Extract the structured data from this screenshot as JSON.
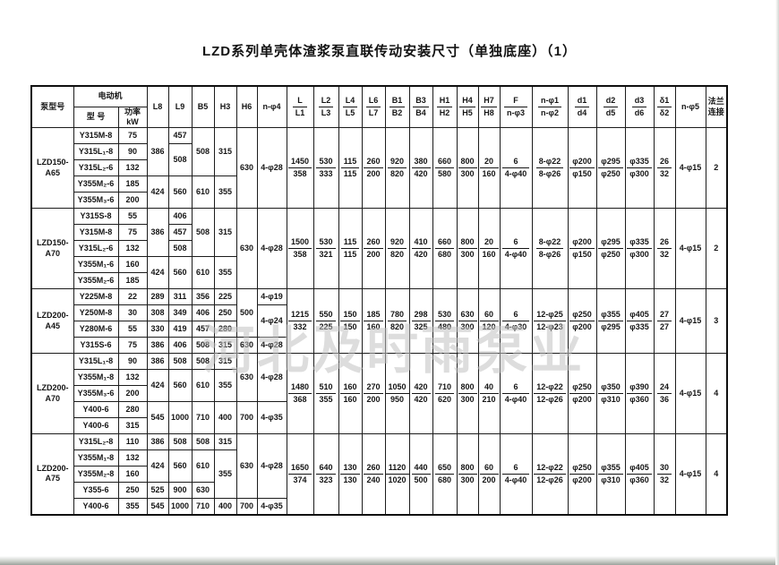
{
  "title": "LZD系列单壳体渣浆泵直联传动安装尺寸（单独底座）（1）",
  "watermark": "河北及时雨泵业",
  "header": {
    "pump_model": "泵型号",
    "motor": "电动机",
    "motor_model": "型 号",
    "motor_power": "功率kW",
    "simple_cols": [
      "L8",
      "L9",
      "B5",
      "H3",
      "H6",
      "n-φ4"
    ],
    "frac_cols": [
      [
        "L",
        "L1"
      ],
      [
        "L2",
        "L3"
      ],
      [
        "L4",
        "L5"
      ],
      [
        "L6",
        "L7"
      ],
      [
        "B1",
        "B2"
      ],
      [
        "B3",
        "B4"
      ],
      [
        "H1",
        "H2"
      ],
      [
        "H4",
        "H5"
      ],
      [
        "H7",
        "H8"
      ],
      [
        "F",
        "n-φ3"
      ],
      [
        "n-φ1",
        "n-φ2"
      ],
      [
        "d1",
        "d4"
      ],
      [
        "d2",
        "d5"
      ],
      [
        "d3",
        "d6"
      ],
      [
        "δ1",
        "δ2"
      ]
    ],
    "n_phi5": "n-φ5",
    "flange_lines": [
      "法兰",
      "连接"
    ]
  },
  "groups": [
    {
      "model": "LZD150-A65",
      "rows": [
        [
          {
            "t": "Y315M-8"
          },
          {
            "t": "75"
          },
          {
            "t": "386",
            "rs": 3
          },
          {
            "t": "457"
          },
          {
            "t": "508",
            "rs": 3
          },
          {
            "t": "315",
            "rs": 3
          },
          {
            "t": "630",
            "rs": 5
          },
          {
            "t": "4-φ28",
            "rs": 5
          }
        ],
        [
          {
            "t": "Y315L₁-8"
          },
          {
            "t": "90"
          },
          {
            "t": "508",
            "rs": 2
          }
        ],
        [
          {
            "t": "Y315L₂-6"
          },
          {
            "t": "132"
          }
        ],
        [
          {
            "t": "Y355M₂-6"
          },
          {
            "t": "185"
          },
          {
            "t": "424",
            "rs": 2
          },
          {
            "t": "560",
            "rs": 2
          },
          {
            "t": "610",
            "rs": 2
          },
          {
            "t": "355",
            "rs": 2
          }
        ],
        [
          {
            "t": "Y355M₃-6"
          },
          {
            "t": "200"
          }
        ]
      ],
      "merged": [
        {
          "f": [
            "1450",
            "358"
          ]
        },
        {
          "f": [
            "530",
            "333"
          ]
        },
        {
          "f": [
            "115",
            "115"
          ]
        },
        {
          "f": [
            "260",
            "200"
          ]
        },
        {
          "f": [
            "920",
            "820"
          ]
        },
        {
          "f": [
            "380",
            "420"
          ]
        },
        {
          "f": [
            "660",
            "580"
          ]
        },
        {
          "f": [
            "800",
            "300"
          ]
        },
        {
          "f": [
            "20",
            "160"
          ]
        },
        {
          "f": [
            "6",
            "4-φ40"
          ]
        },
        {
          "f": [
            "8-φ22",
            "8-φ26"
          ]
        },
        {
          "f": [
            "φ200",
            "φ150"
          ]
        },
        {
          "f": [
            "φ295",
            "φ250"
          ]
        },
        {
          "f": [
            "φ335",
            "φ300"
          ]
        },
        {
          "f": [
            "26",
            "32"
          ]
        },
        {
          "t": "4-φ15"
        },
        {
          "t": "2"
        }
      ]
    },
    {
      "model": "LZD150-A70",
      "rows": [
        [
          {
            "t": "Y315S-8"
          },
          {
            "t": "55"
          },
          {
            "t": "386",
            "rs": 3
          },
          {
            "t": "406"
          },
          {
            "t": "508",
            "rs": 3
          },
          {
            "t": "315",
            "rs": 3
          },
          {
            "t": "630",
            "rs": 5
          },
          {
            "t": "4-φ28",
            "rs": 5
          }
        ],
        [
          {
            "t": "Y315M-8"
          },
          {
            "t": "75"
          },
          {
            "t": "457"
          }
        ],
        [
          {
            "t": "Y315L₂-6"
          },
          {
            "t": "132"
          },
          {
            "t": "508"
          }
        ],
        [
          {
            "t": "Y355M₁-6"
          },
          {
            "t": "160"
          },
          {
            "t": "424",
            "rs": 2
          },
          {
            "t": "560",
            "rs": 2
          },
          {
            "t": "610",
            "rs": 2
          },
          {
            "t": "355",
            "rs": 2
          }
        ],
        [
          {
            "t": "Y355M₂-6"
          },
          {
            "t": "185"
          }
        ]
      ],
      "merged": [
        {
          "f": [
            "1500",
            "358"
          ]
        },
        {
          "f": [
            "530",
            "321"
          ]
        },
        {
          "f": [
            "115",
            "115"
          ]
        },
        {
          "f": [
            "260",
            "200"
          ]
        },
        {
          "f": [
            "920",
            "820"
          ]
        },
        {
          "f": [
            "410",
            "420"
          ]
        },
        {
          "f": [
            "660",
            "680"
          ]
        },
        {
          "f": [
            "800",
            "300"
          ]
        },
        {
          "f": [
            "20",
            "160"
          ]
        },
        {
          "f": [
            "6",
            "4-φ40"
          ]
        },
        {
          "f": [
            "8-φ22",
            "8-φ26"
          ]
        },
        {
          "f": [
            "φ200",
            "φ150"
          ]
        },
        {
          "f": [
            "φ295",
            "φ250"
          ]
        },
        {
          "f": [
            "φ335",
            "φ300"
          ]
        },
        {
          "f": [
            "26",
            "32"
          ]
        },
        {
          "t": "4-φ15"
        },
        {
          "t": "2"
        }
      ]
    },
    {
      "model": "LZD200-A45",
      "rows": [
        [
          {
            "t": "Y225M-8"
          },
          {
            "t": "22"
          },
          {
            "t": "289"
          },
          {
            "t": "311"
          },
          {
            "t": "356"
          },
          {
            "t": "225"
          },
          {
            "t": "500",
            "rs": 3
          },
          {
            "t": "4-φ19"
          }
        ],
        [
          {
            "t": "Y250M-8"
          },
          {
            "t": "30"
          },
          {
            "t": "308"
          },
          {
            "t": "349"
          },
          {
            "t": "406"
          },
          {
            "t": "250"
          },
          {
            "t": "4-φ24",
            "rs": 2
          }
        ],
        [
          {
            "t": "Y280M-6"
          },
          {
            "t": "55"
          },
          {
            "t": "330"
          },
          {
            "t": "419"
          },
          {
            "t": "457"
          },
          {
            "t": "280"
          }
        ],
        [
          {
            "t": "Y315S-6"
          },
          {
            "t": "75"
          },
          {
            "t": "386"
          },
          {
            "t": "406"
          },
          {
            "t": "508"
          },
          {
            "t": "315"
          },
          {
            "t": "630"
          },
          {
            "t": "4-φ28"
          }
        ]
      ],
      "merged": [
        {
          "f": [
            "1215",
            "332"
          ]
        },
        {
          "f": [
            "550",
            "225"
          ]
        },
        {
          "f": [
            "150",
            "150"
          ]
        },
        {
          "f": [
            "185",
            "160"
          ]
        },
        {
          "f": [
            "780",
            "820"
          ]
        },
        {
          "f": [
            "298",
            "325"
          ]
        },
        {
          "f": [
            "530",
            "480"
          ]
        },
        {
          "f": [
            "630",
            "300"
          ]
        },
        {
          "f": [
            "60",
            "120"
          ]
        },
        {
          "f": [
            "6",
            "4-φ30"
          ]
        },
        {
          "f": [
            "12-φ25",
            "12-φ23"
          ]
        },
        {
          "f": [
            "φ250",
            "φ200"
          ]
        },
        {
          "f": [
            "φ355",
            "φ295"
          ]
        },
        {
          "f": [
            "φ405",
            "φ335"
          ]
        },
        {
          "f": [
            "27",
            "27"
          ]
        },
        {
          "t": "4-φ15"
        },
        {
          "t": "3"
        }
      ]
    },
    {
      "model": "LZD200-A70",
      "rows": [
        [
          {
            "t": "Y315L₁-8"
          },
          {
            "t": "90"
          },
          {
            "t": "386"
          },
          {
            "t": "508"
          },
          {
            "t": "508"
          },
          {
            "t": "315"
          },
          {
            "t": "630",
            "rs": 3
          },
          {
            "t": "4-φ28",
            "rs": 3
          }
        ],
        [
          {
            "t": "Y355M₁-8"
          },
          {
            "t": "132"
          },
          {
            "t": "424",
            "rs": 2
          },
          {
            "t": "560",
            "rs": 2
          },
          {
            "t": "610",
            "rs": 2
          },
          {
            "t": "355",
            "rs": 2
          }
        ],
        [
          {
            "t": "Y355M₃-6"
          },
          {
            "t": "200"
          }
        ],
        [
          {
            "t": "Y400-6"
          },
          {
            "t": "280"
          },
          {
            "t": "545",
            "rs": 2
          },
          {
            "t": "1000",
            "rs": 2
          },
          {
            "t": "710",
            "rs": 2
          },
          {
            "t": "400",
            "rs": 2
          },
          {
            "t": "700",
            "rs": 2
          },
          {
            "t": "4-φ35",
            "rs": 2
          }
        ],
        [
          {
            "t": "Y400-6"
          },
          {
            "t": "315"
          }
        ]
      ],
      "merged": [
        {
          "f": [
            "1480",
            "368"
          ]
        },
        {
          "f": [
            "510",
            "355"
          ]
        },
        {
          "f": [
            "160",
            "160"
          ]
        },
        {
          "f": [
            "270",
            "200"
          ]
        },
        {
          "f": [
            "1050",
            "950"
          ]
        },
        {
          "f": [
            "420",
            "420"
          ]
        },
        {
          "f": [
            "710",
            "620"
          ]
        },
        {
          "f": [
            "800",
            "300"
          ]
        },
        {
          "f": [
            "40",
            "210"
          ]
        },
        {
          "f": [
            "6",
            "4-φ40"
          ]
        },
        {
          "f": [
            "12-φ22",
            "12-φ26"
          ]
        },
        {
          "f": [
            "φ250",
            "φ200"
          ]
        },
        {
          "f": [
            "φ350",
            "φ310"
          ]
        },
        {
          "f": [
            "φ390",
            "φ360"
          ]
        },
        {
          "f": [
            "24",
            "36"
          ]
        },
        {
          "t": "4-φ15"
        },
        {
          "t": "4"
        }
      ]
    },
    {
      "model": "LZD200-A75",
      "rows": [
        [
          {
            "t": "Y315L₂-8"
          },
          {
            "t": "110"
          },
          {
            "t": "386"
          },
          {
            "t": "508"
          },
          {
            "t": "508"
          },
          {
            "t": "315"
          },
          {
            "t": "630",
            "rs": 4
          },
          {
            "t": "4-φ28",
            "rs": 4
          }
        ],
        [
          {
            "t": "Y355M₁-8"
          },
          {
            "t": "132"
          },
          {
            "t": "424",
            "rs": 2
          },
          {
            "t": "560",
            "rs": 2
          },
          {
            "t": "610",
            "rs": 2
          },
          {
            "t": "355",
            "rs": 3
          }
        ],
        [
          {
            "t": "Y355M₂-8"
          },
          {
            "t": "160"
          }
        ],
        [
          {
            "t": "Y355-6"
          },
          {
            "t": "250"
          },
          {
            "t": "525"
          },
          {
            "t": "900"
          },
          {
            "t": "630"
          }
        ],
        [
          {
            "t": "Y400-6"
          },
          {
            "t": "355"
          },
          {
            "t": "545"
          },
          {
            "t": "1000"
          },
          {
            "t": "710"
          },
          {
            "t": "400"
          },
          {
            "t": "700"
          },
          {
            "t": "4-φ35"
          }
        ]
      ],
      "merged": [
        {
          "f": [
            "1650",
            "374"
          ]
        },
        {
          "f": [
            "640",
            "323"
          ]
        },
        {
          "f": [
            "130",
            "130"
          ]
        },
        {
          "f": [
            "260",
            "240"
          ]
        },
        {
          "f": [
            "1120",
            "1020"
          ]
        },
        {
          "f": [
            "440",
            "500"
          ]
        },
        {
          "f": [
            "650",
            "680"
          ]
        },
        {
          "f": [
            "800",
            "300"
          ]
        },
        {
          "f": [
            "60",
            "200"
          ]
        },
        {
          "f": [
            "6",
            "4-φ40"
          ]
        },
        {
          "f": [
            "12-φ22",
            "12-φ26"
          ]
        },
        {
          "f": [
            "φ250",
            "φ200"
          ]
        },
        {
          "f": [
            "φ355",
            "φ310"
          ]
        },
        {
          "f": [
            "φ405",
            "φ360"
          ]
        },
        {
          "f": [
            "30",
            "32"
          ]
        },
        {
          "t": "4-φ15"
        },
        {
          "t": "4"
        }
      ]
    }
  ]
}
